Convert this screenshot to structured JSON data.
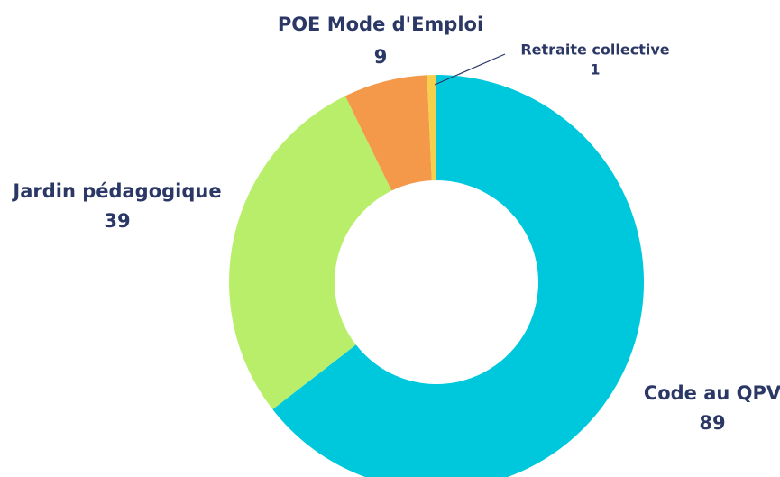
{
  "chart_data": {
    "type": "pie",
    "donut": true,
    "categories": [
      "Code au QPV",
      "Jardin pédagogique",
      "POE Mode d'Emploi",
      "Retraite collective"
    ],
    "values": [
      89,
      39,
      9,
      1
    ],
    "colors": [
      "#00c8dc",
      "#b9ee6b",
      "#f4994a",
      "#f6d04d"
    ]
  }
}
